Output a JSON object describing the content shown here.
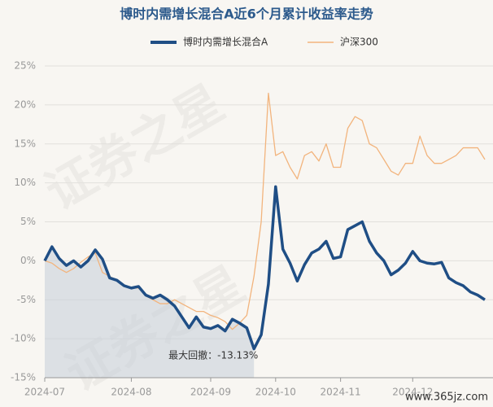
{
  "chart_data": {
    "type": "line",
    "title": "博时内需增长混合A近6个月累计收益率走势",
    "annotation": "最大回撤：-13.13%",
    "watermark": "证券之星",
    "site": "www.365jz.com",
    "categories": [
      "2024-07",
      null,
      null,
      null,
      null,
      null,
      null,
      null,
      null,
      null,
      null,
      null,
      "2024-08",
      null,
      null,
      null,
      null,
      null,
      null,
      null,
      null,
      null,
      null,
      "2024-09",
      null,
      null,
      null,
      null,
      null,
      null,
      null,
      null,
      "2024-10",
      null,
      null,
      null,
      null,
      null,
      null,
      null,
      null,
      "2024-11",
      null,
      null,
      null,
      null,
      null,
      null,
      null,
      null,
      null,
      "2024-12",
      null,
      null,
      null,
      null,
      null,
      null,
      null,
      null,
      null,
      null
    ],
    "series": [
      {
        "name": "博时内需增长混合A",
        "color": "#1f4e85",
        "values": [
          0,
          1.8,
          0.3,
          -0.6,
          0,
          -0.8,
          0,
          1.4,
          0.2,
          -2.2,
          -2.5,
          -3.2,
          -3.5,
          -3.3,
          -4.4,
          -4.8,
          -4.4,
          -5,
          -5.8,
          -7.2,
          -8.6,
          -7.2,
          -8.5,
          -8.7,
          -8.3,
          -9,
          -7.5,
          -8,
          -8.6,
          -11.3,
          -9.5,
          -3,
          9.5,
          1.5,
          -0.3,
          -2.6,
          -0.5,
          1,
          1.5,
          2.5,
          0.3,
          0.5,
          4,
          4.5,
          5,
          2.5,
          1,
          0,
          -1.8,
          -1.2,
          -0.3,
          1.2,
          0,
          -0.3,
          -0.4,
          -0.2,
          -2.2,
          -2.8,
          -3.2,
          -4,
          -4.4,
          -5
        ]
      },
      {
        "name": "沪深300",
        "color": "#f2b47d",
        "values": [
          0,
          -0.3,
          -1,
          -1.5,
          -1,
          -0.2,
          0.5,
          1,
          -1.5,
          -2,
          -2.5,
          -3.2,
          -3.5,
          -3.5,
          -4.5,
          -5,
          -5.5,
          -5.5,
          -5,
          -5.5,
          -6,
          -6.5,
          -6.5,
          -7,
          -7.3,
          -7.8,
          -8.8,
          -8,
          -7,
          -2,
          5,
          21.5,
          13.5,
          14,
          12,
          10.5,
          13.5,
          14,
          12.8,
          15,
          12,
          12,
          17,
          18.5,
          18,
          15,
          14.5,
          13,
          11.5,
          11,
          12.5,
          12.5,
          16,
          13.5,
          12.5,
          12.5,
          13,
          13.5,
          14.5,
          14.5,
          14.5,
          13
        ]
      }
    ],
    "ylim": [
      -15,
      25
    ],
    "yticks": [
      {
        "value": -15,
        "label": "-15%"
      },
      {
        "value": -10,
        "label": "-10%"
      },
      {
        "value": -5,
        "label": "-5%"
      },
      {
        "value": 0,
        "label": "0%"
      },
      {
        "value": 5,
        "label": "5%"
      },
      {
        "value": 10,
        "label": "10%"
      },
      {
        "value": 15,
        "label": "15%"
      },
      {
        "value": 20,
        "label": "20%"
      },
      {
        "value": 25,
        "label": "25%"
      }
    ],
    "grid": true,
    "drawdown_color": "#c5cdd8"
  }
}
